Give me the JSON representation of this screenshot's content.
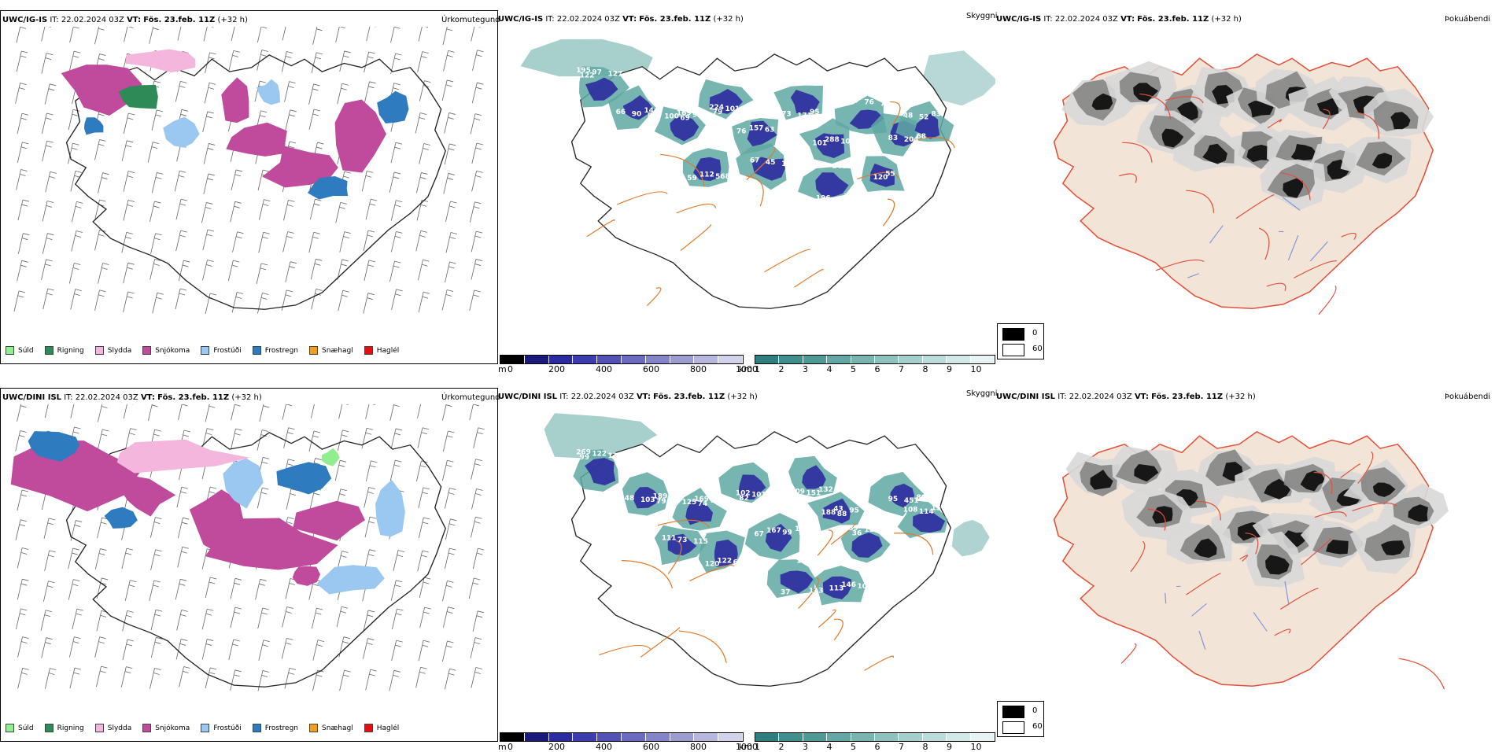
{
  "rows": [
    {
      "precip": {
        "title_model": "UWC/IG-IS",
        "title_it": "IT: 22.02.2024 03Z",
        "title_vt_label": "VT:",
        "title_vt": "Fös. 23.feb. 11Z",
        "title_lead": "(+32 h)",
        "type_label": "Úrkomutegund"
      },
      "visibility": {
        "title_model": "UWC/IG-IS",
        "title_it": "IT: 22.02.2024 03Z",
        "title_vt_label": "VT:",
        "title_vt": "Fös. 23.feb. 11Z",
        "title_lead": "(+32 h)",
        "type_label": "Skyggni"
      },
      "fog": {
        "title_model": "UWC/IG-IS",
        "title_it": "IT: 22.02.2024 03Z",
        "title_vt_label": "VT:",
        "title_vt": "Fös. 23.feb. 11Z",
        "title_lead": "(+32 h)",
        "type_label": "Þokuábendi"
      }
    },
    {
      "precip": {
        "title_model": "UWC/DINI ISL",
        "title_it": "IT: 22.02.2024 03Z",
        "title_vt_label": "VT:",
        "title_vt": "Fös. 23.feb. 11Z",
        "title_lead": "(+32 h)",
        "type_label": "Úrkomutegund"
      },
      "visibility": {
        "title_model": "UWC/DINI ISL",
        "title_it": "IT: 22.02.2024 03Z",
        "title_vt_label": "VT:",
        "title_vt": "Fös. 23.feb. 11Z",
        "title_lead": "(+32 h)",
        "type_label": "Skyggni"
      },
      "fog": {
        "title_model": "UWC/DINI ISL",
        "title_it": "IT: 22.02.2024 03Z",
        "title_vt_label": "VT:",
        "title_vt": "Fös. 23.feb. 11Z",
        "title_lead": "(+32 h)",
        "type_label": "Þokuábendi"
      }
    }
  ],
  "precip_legend": [
    {
      "label": "Súld",
      "color": "#90ee90"
    },
    {
      "label": "Rigning",
      "color": "#2e8b57"
    },
    {
      "label": "Slydda",
      "color": "#f4b6dc"
    },
    {
      "label": "Snjókoma",
      "color": "#c04a9c"
    },
    {
      "label": "Frostúði",
      "color": "#9ac8f0"
    },
    {
      "label": "Frostregn",
      "color": "#2f7bc0"
    },
    {
      "label": "Snæhagl",
      "color": "#f0a020"
    },
    {
      "label": "Haglél",
      "color": "#e01010"
    }
  ],
  "vis_scale_m": {
    "unit": "m",
    "ticks": [
      "0",
      "200",
      "400",
      "600",
      "800",
      "1000"
    ],
    "colors": [
      "#000000",
      "#1a1a7a",
      "#2b2b9e",
      "#3c3caf",
      "#5252b6",
      "#6a6abf",
      "#8484c8",
      "#9c9cd2",
      "#b6b6de",
      "#d2d2ec"
    ]
  },
  "vis_scale_km": {
    "unit": "km",
    "ticks": [
      "1",
      "2",
      "3",
      "4",
      "5",
      "6",
      "7",
      "8",
      "9",
      "10"
    ],
    "colors": [
      "#2f7f7f",
      "#3f8f8c",
      "#4f9a97",
      "#63a8a4",
      "#78b5b1",
      "#8dc2bf",
      "#a3cfcc",
      "#badcda",
      "#d1e9e7",
      "#e8f4f3"
    ]
  },
  "fog_legend": [
    {
      "label": "0",
      "color": "#000000"
    },
    {
      "label": "60",
      "color": "#ffffff"
    }
  ],
  "vis_labels_top": [
    "195",
    "144",
    "169",
    "224",
    "100",
    "95",
    "288",
    "76",
    "68",
    "83",
    "112",
    "67",
    "76",
    "55",
    "97",
    "66",
    "92",
    "101",
    "157",
    "73",
    "102",
    "76",
    "83",
    "48",
    "568",
    "45",
    "196",
    "99",
    "127",
    "90",
    "100",
    "68",
    "63",
    "171",
    "101",
    "71",
    "204",
    "52",
    "59",
    "105",
    "146",
    "120",
    "122",
    "83",
    "69",
    "79",
    "76",
    "168"
  ],
  "vis_labels_bottom": [
    "269",
    "189",
    "169",
    "102",
    "145",
    "132",
    "43",
    "89",
    "80",
    "157",
    "122",
    "111",
    "113",
    "146",
    "122",
    "48",
    "107",
    "101",
    "167",
    "209",
    "95",
    "124",
    "95",
    "108",
    "64",
    "73",
    "37",
    "100",
    "135",
    "103",
    "125",
    "85",
    "99",
    "151",
    "188",
    "199",
    "451",
    "114",
    "120",
    "115",
    "103",
    "113",
    "99",
    "79",
    "74",
    "82",
    "67",
    "56",
    "88",
    "36"
  ],
  "colors": {
    "snow": "#c04a9c",
    "sleet": "#f4b6dc",
    "rain": "#2e8b57",
    "freezing_rain": "#2f7bc0",
    "freezing_drizzle": "#9ac8f0",
    "low_vis": "#2b2b9e",
    "vis_teal": "#5fa8a3",
    "road": "#e07a2a",
    "land": "#f2e4d6"
  }
}
